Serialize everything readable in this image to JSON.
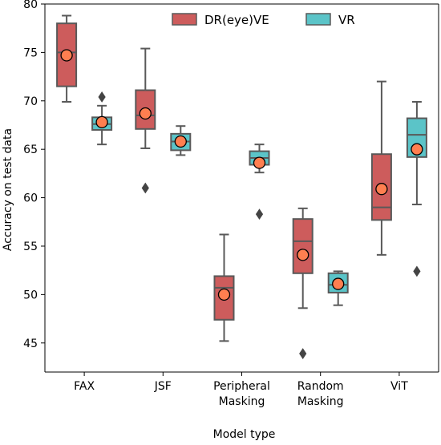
{
  "chart_data": {
    "type": "box",
    "xlabel": "Model type",
    "ylabel": "Accuracy on test data",
    "ylim": [
      42,
      80
    ],
    "yticks": [
      45,
      50,
      55,
      60,
      65,
      70,
      75,
      80
    ],
    "categories": [
      [
        "FAX"
      ],
      [
        "JSF"
      ],
      [
        "Peripheral",
        "Masking"
      ],
      [
        "Random",
        "Masking"
      ],
      [
        "ViT"
      ]
    ],
    "legend": {
      "position": "top-center"
    },
    "grid": false,
    "series": [
      {
        "name": "DR(eye)VE",
        "color": "#cd5c5c",
        "edge_color": "#595959",
        "boxes": [
          {
            "whisker_low": 69.9,
            "q1": 71.5,
            "median": 75.0,
            "q3": 78.0,
            "whisker_high": 78.8,
            "mean": 74.7,
            "outliers": []
          },
          {
            "whisker_low": 65.1,
            "q1": 67.1,
            "median": 68.5,
            "q3": 71.1,
            "whisker_high": 75.4,
            "mean": 68.7,
            "outliers": [
              61.0
            ]
          },
          {
            "whisker_low": 45.2,
            "q1": 47.4,
            "median": 50.7,
            "q3": 51.9,
            "whisker_high": 56.2,
            "mean": 50.0,
            "outliers": []
          },
          {
            "whisker_low": 48.6,
            "q1": 52.2,
            "median": 55.5,
            "q3": 57.8,
            "whisker_high": 58.9,
            "mean": 54.1,
            "outliers": [
              43.9
            ]
          },
          {
            "whisker_low": 54.1,
            "q1": 57.7,
            "median": 59.0,
            "q3": 64.5,
            "whisker_high": 72.0,
            "mean": 60.9,
            "outliers": []
          }
        ]
      },
      {
        "name": "VR",
        "color": "#5bc4c8",
        "edge_color": "#595959",
        "boxes": [
          {
            "whisker_low": 65.5,
            "q1": 67.0,
            "median": 67.6,
            "q3": 68.3,
            "whisker_high": 69.5,
            "mean": 67.8,
            "outliers": [
              70.4
            ]
          },
          {
            "whisker_low": 64.4,
            "q1": 64.9,
            "median": 65.8,
            "q3": 66.6,
            "whisker_high": 67.4,
            "mean": 65.8,
            "outliers": []
          },
          {
            "whisker_low": 62.6,
            "q1": 63.4,
            "median": 64.1,
            "q3": 64.8,
            "whisker_high": 65.5,
            "mean": 63.6,
            "outliers": [
              58.3
            ]
          },
          {
            "whisker_low": 48.9,
            "q1": 50.2,
            "median": 51.0,
            "q3": 52.2,
            "whisker_high": 52.4,
            "mean": 51.1,
            "outliers": []
          },
          {
            "whisker_low": 59.3,
            "q1": 64.2,
            "median": 66.5,
            "q3": 68.2,
            "whisker_high": 69.9,
            "mean": 65.0,
            "outliers": [
              52.4
            ]
          }
        ]
      }
    ],
    "mean_marker": {
      "fill": "#ff7f50",
      "edge": "#000000"
    }
  }
}
